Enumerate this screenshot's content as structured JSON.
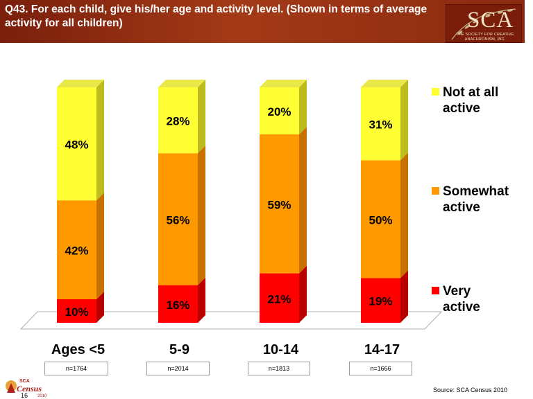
{
  "header": {
    "title": "Q43. For each child, give his/her age and activity level. (Shown in terms of average activity for all children)",
    "logo": {
      "name": "SCA",
      "sub_line1": "THE SOCIETY FOR CREATIVE",
      "sub_line2": "ANACHRONISM, INC."
    }
  },
  "colors": {
    "header_bg": "#9a3414",
    "not_at_all": "#ffff33",
    "somewhat": "#ff9900",
    "very": "#ff0000"
  },
  "chart_data": {
    "type": "bar",
    "stacked": true,
    "categories": [
      "Ages <5",
      "5-9",
      "10-14",
      "14-17"
    ],
    "series": [
      {
        "name": "Very active",
        "values": [
          10,
          16,
          21,
          19
        ],
        "labels": [
          "10%",
          "16%",
          "21%",
          "19%"
        ]
      },
      {
        "name": "Somewhat active",
        "values": [
          42,
          56,
          59,
          50
        ],
        "labels": [
          "42%",
          "56%",
          "59%",
          "50%"
        ]
      },
      {
        "name": "Not at all active",
        "values": [
          48,
          28,
          20,
          31
        ],
        "labels": [
          "48%",
          "28%",
          "20%",
          "31%"
        ]
      }
    ],
    "ylim": [
      0,
      100
    ],
    "grid": false,
    "legend_position": "right",
    "sample_sizes": [
      "n=1764",
      "n=2014",
      "n=1813",
      "n=1666"
    ]
  },
  "legend": [
    {
      "line1": "Not at all",
      "line2": "active"
    },
    {
      "line1": "Somewhat",
      "line2": "active"
    },
    {
      "line1": "Very",
      "line2": "active"
    }
  ],
  "footer": {
    "source": "Source: SCA Census 2010",
    "page_number": "16",
    "census_logo_word": "Census",
    "census_logo_top": "SCA",
    "census_logo_year": "2010"
  }
}
